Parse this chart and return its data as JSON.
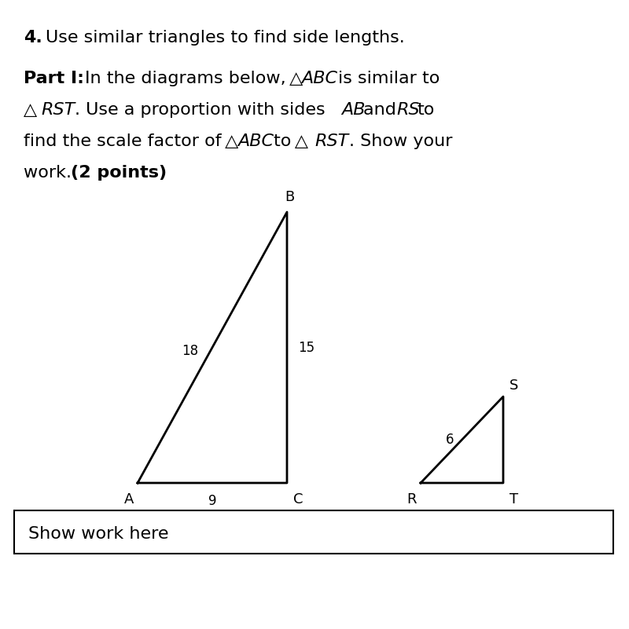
{
  "background_color": "#ffffff",
  "text_color": "#000000",
  "line_color": "#000000",
  "fontsize_main": 16,
  "fontsize_labels": 13,
  "fontsize_side_labels": 12,
  "triangle_ABC": {
    "A": [
      150,
      130
    ],
    "B": [
      370,
      390
    ],
    "C": [
      370,
      130
    ],
    "label_A": "A",
    "label_B": "B",
    "label_C": "C",
    "label_AB": "18",
    "label_BC": "15",
    "label_AC": "9"
  },
  "triangle_RST": {
    "R": [
      530,
      130
    ],
    "S": [
      640,
      280
    ],
    "T": [
      640,
      130
    ],
    "label_R": "R",
    "label_S": "S",
    "label_T": "T",
    "label_RS": "6"
  },
  "show_work_text": "Show work here"
}
